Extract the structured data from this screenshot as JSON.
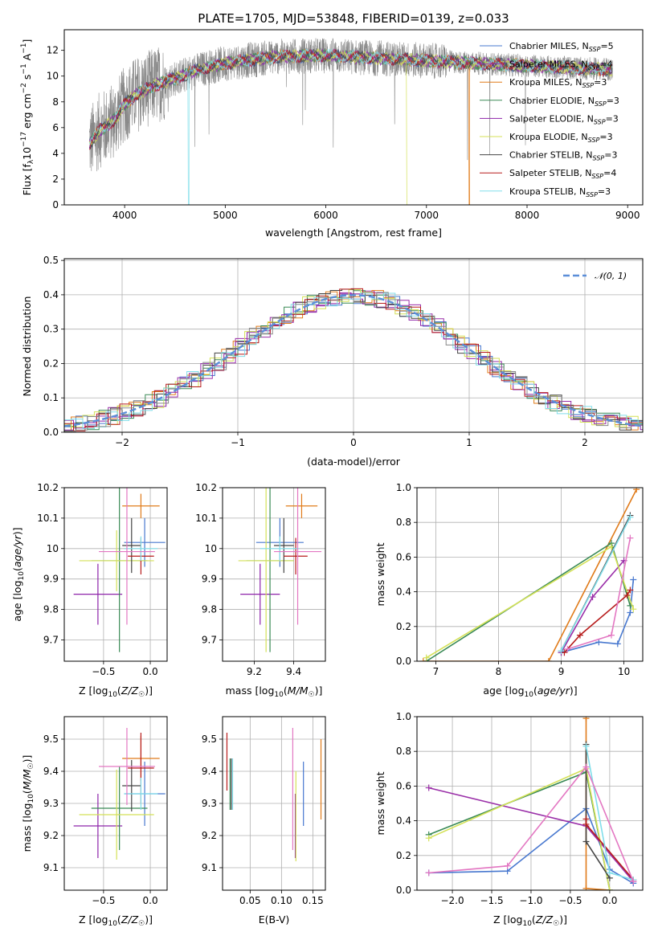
{
  "palette": [
    "#4878cf",
    "#9a2fa8",
    "#e07b1a",
    "#3a8a56",
    "#8e24aa",
    "#d4e157",
    "#444444",
    "#b71c1c",
    "#80deea",
    "#888888",
    "#e377c2"
  ],
  "chart_data": [
    {
      "id": "spectrum",
      "type": "line",
      "title": "PLATE=1705, MJD=53848, FIBERID=0139, z=0.033",
      "xlabel": "wavelength [Angstrom, rest frame]",
      "ylabel": "Flux [f_λ10^-17 erg cm^-2 s^-1 A^-1]",
      "xlim": [
        3400,
        9150
      ],
      "ylim": [
        0,
        13.6
      ],
      "xticks": [
        4000,
        5000,
        6000,
        7000,
        8000,
        9000
      ],
      "yticks": [
        0,
        2,
        4,
        6,
        8,
        10,
        12
      ],
      "continuum": {
        "x": [
          3650,
          3700,
          3750,
          3800,
          3900,
          4000,
          4100,
          4300,
          4500,
          4700,
          5000,
          5500,
          6000,
          6500,
          7000,
          7500,
          8000,
          8500,
          8850
        ],
        "y": [
          4.8,
          5.2,
          5.8,
          6.0,
          6.6,
          7.8,
          8.5,
          9.3,
          9.8,
          10.4,
          11.0,
          11.5,
          11.6,
          11.4,
          11.2,
          11.0,
          10.8,
          10.6,
          10.5
        ]
      },
      "legend": [
        {
          "name": "Chabrier MILES, N_SSP=5",
          "color": "#4878cf"
        },
        {
          "name": "Salpeter MILES, N_SSP=4",
          "color": "#9a2fa8"
        },
        {
          "name": "Kroupa MILES, N_SSP=3",
          "color": "#e07b1a"
        },
        {
          "name": "Chabrier ELODIE, N_SSP=3",
          "color": "#3a8a56"
        },
        {
          "name": "Salpeter ELODIE, N_SSP=3",
          "color": "#8e24aa"
        },
        {
          "name": "Kroupa ELODIE, N_SSP=3",
          "color": "#d4e157"
        },
        {
          "name": "Chabrier STELIB, N_SSP=3",
          "color": "#444444"
        },
        {
          "name": "Salpeter STELIB, N_SSP=4",
          "color": "#b71c1c"
        },
        {
          "name": "Kroupa STELIB, N_SSP=3",
          "color": "#80deea"
        }
      ],
      "legend_placement": "top-right",
      "grid": false
    },
    {
      "id": "residuals",
      "type": "step",
      "xlabel": "(data-model)/error",
      "ylabel": "Normed distribution",
      "xlim": [
        -2.5,
        2.5
      ],
      "ylim": [
        0,
        0.505
      ],
      "xticks": [
        -2,
        -1,
        0,
        1,
        2
      ],
      "xticklabels": [
        "−2",
        "−1",
        "0",
        "1",
        "2"
      ],
      "yticks": [
        0.0,
        0.1,
        0.2,
        0.3,
        0.4,
        0.5
      ],
      "yticklabels": [
        "0.0",
        "0.1",
        "0.2",
        "0.3",
        "0.4",
        "0.5"
      ],
      "bin_width": 0.1,
      "legend": [
        {
          "name": "𝒩(0, 1)",
          "color": "#5b8ed8"
        }
      ],
      "legend_placement": "top-right",
      "grid": true
    },
    {
      "id": "age_vs_Z",
      "type": "errorbar",
      "xlabel": "Z [log10(Z/Z☉)]",
      "ylabel": "age  [log10(age/yr)]",
      "xlim": [
        -0.92,
        0.18
      ],
      "ylim": [
        9.63,
        10.2
      ],
      "xticks": [
        -0.5,
        0.0
      ],
      "xticklabels": [
        "−0.5",
        "0.0"
      ],
      "yticks": [
        9.7,
        9.8,
        9.9,
        10.0,
        10.1,
        10.2
      ],
      "points": [
        {
          "x": -0.06,
          "xerr": 0.22,
          "y": 10.02,
          "yerr": 0.08,
          "color": "#4878cf"
        },
        {
          "x": -0.1,
          "xerr": 0.2,
          "y": 10.14,
          "yerr": 0.04,
          "color": "#e07b1a"
        },
        {
          "x": -0.56,
          "xerr": 0.26,
          "y": 9.85,
          "yerr": 0.1,
          "color": "#8e24aa"
        },
        {
          "x": -0.33,
          "xerr": 0.3,
          "y": 9.96,
          "yerr": 0.3,
          "color": "#3a8a56"
        },
        {
          "x": -0.36,
          "xerr": 0.4,
          "y": 9.96,
          "yerr": 0.1,
          "color": "#d4e157"
        },
        {
          "x": -0.2,
          "xerr": 0.1,
          "y": 10.01,
          "yerr": 0.09,
          "color": "#444444"
        },
        {
          "x": -0.1,
          "xerr": 0.14,
          "y": 9.975,
          "yerr": 0.06,
          "color": "#b71c1c"
        },
        {
          "x": -0.1,
          "xerr": 0.18,
          "y": 10.0,
          "yerr": 0.04,
          "color": "#80deea"
        },
        {
          "x": -0.25,
          "xerr": 0.3,
          "y": 9.99,
          "yerr": 0.24,
          "color": "#e377c2"
        }
      ],
      "grid": true
    },
    {
      "id": "age_vs_mass",
      "type": "errorbar",
      "xlabel": "mass [log10(M/M☉)]",
      "ylabel": "",
      "xlim": [
        9.04,
        9.56
      ],
      "ylim": [
        9.63,
        10.2
      ],
      "xticks": [
        9.2,
        9.4
      ],
      "yticks": [
        9.7,
        9.8,
        9.9,
        10.0,
        10.1,
        10.2
      ],
      "points": [
        {
          "x": 9.33,
          "xerr": 0.12,
          "y": 10.02,
          "yerr": 0.08,
          "color": "#4878cf"
        },
        {
          "x": 9.44,
          "xerr": 0.08,
          "y": 10.14,
          "yerr": 0.04,
          "color": "#e07b1a"
        },
        {
          "x": 9.23,
          "xerr": 0.1,
          "y": 9.85,
          "yerr": 0.1,
          "color": "#8e24aa"
        },
        {
          "x": 9.28,
          "xerr": 0.12,
          "y": 9.96,
          "yerr": 0.3,
          "color": "#3a8a56"
        },
        {
          "x": 9.26,
          "xerr": 0.14,
          "y": 9.96,
          "yerr": 0.3,
          "color": "#d4e157"
        },
        {
          "x": 9.35,
          "xerr": 0.05,
          "y": 10.01,
          "yerr": 0.09,
          "color": "#444444"
        },
        {
          "x": 9.41,
          "xerr": 0.06,
          "y": 9.975,
          "yerr": 0.06,
          "color": "#b71c1c"
        },
        {
          "x": 9.33,
          "xerr": 0.1,
          "y": 10.0,
          "yerr": 0.04,
          "color": "#80deea"
        },
        {
          "x": 9.42,
          "xerr": 0.12,
          "y": 9.99,
          "yerr": 0.24,
          "color": "#e377c2"
        }
      ],
      "grid": true
    },
    {
      "id": "weight_vs_age",
      "type": "line",
      "xlabel": "age  [log10(age/yr)]",
      "ylabel": "mass weight",
      "xlim": [
        6.7,
        10.3
      ],
      "ylim": [
        0,
        1
      ],
      "xticks": [
        7,
        8,
        9,
        10
      ],
      "yticks": [
        0.0,
        0.2,
        0.4,
        0.6,
        0.8,
        1.0
      ],
      "yticklabels": [
        "0.0",
        "0.2",
        "0.4",
        "0.6",
        "0.8",
        "1.0"
      ],
      "series": [
        {
          "color": "#4878cf",
          "x": [
            9.0,
            9.6,
            9.9,
            10.1,
            10.15
          ],
          "y": [
            0.05,
            0.11,
            0.1,
            0.28,
            0.47
          ]
        },
        {
          "color": "#9a2fa8",
          "x": [
            9.0,
            9.5,
            10.0
          ],
          "y": [
            0.05,
            0.37,
            0.58
          ]
        },
        {
          "color": "#e07b1a",
          "x": [
            6.8,
            8.8,
            10.2
          ],
          "y": [
            0.0,
            0.0,
            0.99
          ]
        },
        {
          "color": "#3a8a56",
          "x": [
            6.85,
            9.8,
            10.1
          ],
          "y": [
            0.0,
            0.68,
            0.32
          ]
        },
        {
          "color": "#d4e157",
          "x": [
            6.85,
            9.8,
            10.15
          ],
          "y": [
            0.02,
            0.66,
            0.3
          ]
        },
        {
          "color": "#444444",
          "x": [
            9.0,
            10.1
          ],
          "y": [
            0.06,
            0.84
          ]
        },
        {
          "color": "#b71c1c",
          "x": [
            9.05,
            9.3,
            10.05,
            10.1
          ],
          "y": [
            0.05,
            0.15,
            0.38,
            0.41
          ]
        },
        {
          "color": "#80deea",
          "x": [
            9.0,
            10.1
          ],
          "y": [
            0.06,
            0.83
          ]
        },
        {
          "color": "#e377c2",
          "x": [
            9.1,
            9.8,
            10.1
          ],
          "y": [
            0.07,
            0.15,
            0.71
          ]
        }
      ],
      "grid": true
    },
    {
      "id": "mass_vs_Z",
      "type": "errorbar",
      "xlabel": "Z [log10(Z/Z☉)]",
      "ylabel": "mass [log10(M/M☉)]",
      "xlim": [
        -0.92,
        0.18
      ],
      "ylim": [
        9.03,
        9.57
      ],
      "xticks": [
        -0.5,
        0.0
      ],
      "xticklabels": [
        "−0.5",
        "0.0"
      ],
      "yticks": [
        9.1,
        9.2,
        9.3,
        9.4,
        9.5
      ],
      "points": [
        {
          "x": -0.06,
          "xerr": 0.22,
          "y": 9.33,
          "yerr": 0.1,
          "color": "#4878cf"
        },
        {
          "x": -0.1,
          "xerr": 0.2,
          "y": 9.44,
          "yerr": 0.07,
          "color": "#e07b1a"
        },
        {
          "x": -0.56,
          "xerr": 0.26,
          "y": 9.23,
          "yerr": 0.1,
          "color": "#8e24aa"
        },
        {
          "x": -0.33,
          "xerr": 0.3,
          "y": 9.285,
          "yerr": 0.13,
          "color": "#3a8a56"
        },
        {
          "x": -0.36,
          "xerr": 0.4,
          "y": 9.265,
          "yerr": 0.14,
          "color": "#d4e157"
        },
        {
          "x": -0.2,
          "xerr": 0.1,
          "y": 9.355,
          "yerr": 0.08,
          "color": "#444444"
        },
        {
          "x": -0.1,
          "xerr": 0.14,
          "y": 9.41,
          "yerr": 0.11,
          "color": "#b71c1c"
        },
        {
          "x": -0.1,
          "xerr": 0.18,
          "y": 9.33,
          "yerr": 0.05,
          "color": "#80deea"
        },
        {
          "x": -0.25,
          "xerr": 0.3,
          "y": 9.415,
          "yerr": 0.12,
          "color": "#e377c2"
        }
      ],
      "grid": true
    },
    {
      "id": "mass_vs_ebv",
      "type": "errorbar",
      "xlabel": "E(B-V)",
      "ylabel": "",
      "xlim": [
        0.006,
        0.17
      ],
      "ylim": [
        9.03,
        9.57
      ],
      "xticks": [
        0.05,
        0.1,
        0.15
      ],
      "xticklabels": [
        "0.05",
        "0.10",
        "0.15"
      ],
      "yticks": [
        9.1,
        9.2,
        9.3,
        9.4,
        9.5
      ],
      "points": [
        {
          "x": 0.135,
          "y": 9.33,
          "yerr": 0.1,
          "color": "#4878cf"
        },
        {
          "x": 0.163,
          "y": 9.375,
          "yerr": 0.125,
          "color": "#e07b1a"
        },
        {
          "x": 0.122,
          "y": 9.23,
          "yerr": 0.1,
          "color": "#8e24aa"
        },
        {
          "x": 0.018,
          "y": 9.36,
          "yerr": 0.08,
          "color": "#3a8a56"
        },
        {
          "x": 0.123,
          "y": 9.26,
          "yerr": 0.14,
          "color": "#d4e157"
        },
        {
          "x": 0.02,
          "y": 9.36,
          "yerr": 0.08,
          "color": "#444444"
        },
        {
          "x": 0.013,
          "y": 9.43,
          "yerr": 0.09,
          "color": "#b71c1c"
        },
        {
          "x": 0.022,
          "y": 9.36,
          "yerr": 0.08,
          "color": "#80deea"
        },
        {
          "x": 0.118,
          "y": 9.345,
          "yerr": 0.19,
          "color": "#e377c2"
        }
      ],
      "grid": true
    },
    {
      "id": "weight_vs_Z",
      "type": "line",
      "xlabel": "Z [log10(Z/Z☉)]",
      "ylabel": "mass weight",
      "xlim": [
        -2.45,
        0.42
      ],
      "ylim": [
        0,
        1
      ],
      "xticks": [
        -2.0,
        -1.5,
        -1.0,
        -0.5,
        0.0
      ],
      "xticklabels": [
        "−2.0",
        "−1.5",
        "−1.0",
        "−0.5",
        "0.0"
      ],
      "yticks": [
        0.0,
        0.2,
        0.4,
        0.6,
        0.8,
        1.0
      ],
      "yticklabels": [
        "0.0",
        "0.2",
        "0.4",
        "0.6",
        "0.8",
        "1.0"
      ],
      "series": [
        {
          "color": "#4878cf",
          "x": [
            -2.3,
            -1.3,
            -0.3,
            0.0,
            0.3
          ],
          "y": [
            0.1,
            0.11,
            0.47,
            0.12,
            0.04
          ]
        },
        {
          "color": "#9a2fa8",
          "x": [
            -2.3,
            -0.3,
            0.3
          ],
          "y": [
            0.59,
            0.37,
            0.05
          ]
        },
        {
          "color": "#e07b1a",
          "x": [
            -0.3,
            -0.3,
            0.0
          ],
          "y": [
            0.99,
            0.01,
            0.0
          ]
        },
        {
          "color": "#3a8a56",
          "x": [
            -2.3,
            -0.3,
            0.0
          ],
          "y": [
            0.32,
            0.68,
            0.0
          ]
        },
        {
          "color": "#d4e157",
          "x": [
            -2.3,
            -0.3,
            0.0
          ],
          "y": [
            0.3,
            0.7,
            0.0
          ]
        },
        {
          "color": "#444444",
          "x": [
            -0.3,
            -0.3,
            0.0
          ],
          "y": [
            0.84,
            0.28,
            0.07
          ]
        },
        {
          "color": "#b71c1c",
          "x": [
            -0.3,
            -0.3,
            0.3
          ],
          "y": [
            0.41,
            0.38,
            0.06
          ]
        },
        {
          "color": "#80deea",
          "x": [
            -0.3,
            0.0,
            0.3
          ],
          "y": [
            0.83,
            0.1,
            0.06
          ]
        },
        {
          "color": "#e377c2",
          "x": [
            -2.3,
            -1.3,
            -0.3,
            0.3
          ],
          "y": [
            0.1,
            0.14,
            0.71,
            0.05
          ]
        }
      ],
      "grid": true
    }
  ]
}
